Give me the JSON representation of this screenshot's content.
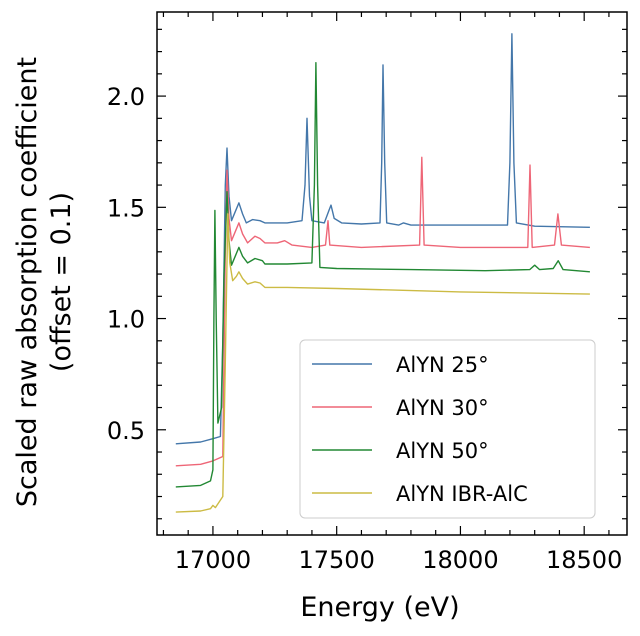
{
  "chart_data": {
    "type": "line",
    "title": "",
    "xlabel": "Energy (eV)",
    "ylabel": [
      "Scaled raw absorption coefficient",
      "(offset = 0.1)"
    ],
    "xlim": [
      16774,
      18673
    ],
    "ylim": [
      0.027,
      2.378
    ],
    "xticks": [
      17000,
      17500,
      18000,
      18500
    ],
    "xtick_labels": [
      "17000",
      "17500",
      "18000",
      "18500"
    ],
    "yticks": [
      0.5,
      1.0,
      1.5,
      2.0
    ],
    "ytick_labels": [
      "0.5",
      "1.0",
      "1.5",
      "2.0"
    ],
    "x_minor_step": 100,
    "y_minor_step": 0.1,
    "grid": false,
    "legend_position": "lower-right",
    "series": [
      {
        "name": "AlYN 25°",
        "color": "#4477AA",
        "points": [
          [
            16850,
            0.437
          ],
          [
            16950,
            0.445
          ],
          [
            17000,
            0.46
          ],
          [
            17030,
            0.47
          ],
          [
            17040,
            0.9
          ],
          [
            17050,
            1.6
          ],
          [
            17057,
            1.766
          ],
          [
            17065,
            1.55
          ],
          [
            17075,
            1.44
          ],
          [
            17090,
            1.48
          ],
          [
            17105,
            1.52
          ],
          [
            17120,
            1.47
          ],
          [
            17135,
            1.43
          ],
          [
            17160,
            1.445
          ],
          [
            17190,
            1.44
          ],
          [
            17210,
            1.43
          ],
          [
            17300,
            1.43
          ],
          [
            17360,
            1.44
          ],
          [
            17372,
            1.6
          ],
          [
            17380,
            1.9
          ],
          [
            17390,
            1.55
          ],
          [
            17400,
            1.44
          ],
          [
            17450,
            1.43
          ],
          [
            17470,
            1.49
          ],
          [
            17477,
            1.51
          ],
          [
            17490,
            1.45
          ],
          [
            17520,
            1.43
          ],
          [
            17600,
            1.425
          ],
          [
            17675,
            1.43
          ],
          [
            17682,
            1.7
          ],
          [
            17687,
            2.14
          ],
          [
            17694,
            1.7
          ],
          [
            17702,
            1.43
          ],
          [
            17750,
            1.42
          ],
          [
            17770,
            1.43
          ],
          [
            17800,
            1.42
          ],
          [
            18000,
            1.42
          ],
          [
            18190,
            1.42
          ],
          [
            18200,
            1.7
          ],
          [
            18208,
            2.28
          ],
          [
            18216,
            1.7
          ],
          [
            18226,
            1.43
          ],
          [
            18300,
            1.415
          ],
          [
            18523,
            1.41
          ]
        ]
      },
      {
        "name": "AlYN 30°",
        "color": "#EE6677",
        "points": [
          [
            16850,
            0.338
          ],
          [
            16950,
            0.345
          ],
          [
            17000,
            0.36
          ],
          [
            17040,
            0.38
          ],
          [
            17050,
            1.3
          ],
          [
            17057,
            1.667
          ],
          [
            17065,
            1.45
          ],
          [
            17075,
            1.35
          ],
          [
            17090,
            1.39
          ],
          [
            17105,
            1.43
          ],
          [
            17120,
            1.38
          ],
          [
            17140,
            1.34
          ],
          [
            17170,
            1.37
          ],
          [
            17190,
            1.36
          ],
          [
            17210,
            1.34
          ],
          [
            17260,
            1.34
          ],
          [
            17290,
            1.35
          ],
          [
            17320,
            1.33
          ],
          [
            17400,
            1.32
          ],
          [
            17455,
            1.33
          ],
          [
            17465,
            1.44
          ],
          [
            17472,
            1.33
          ],
          [
            17600,
            1.32
          ],
          [
            17835,
            1.33
          ],
          [
            17844,
            1.725
          ],
          [
            17853,
            1.33
          ],
          [
            18000,
            1.32
          ],
          [
            18272,
            1.32
          ],
          [
            18281,
            1.69
          ],
          [
            18290,
            1.32
          ],
          [
            18380,
            1.33
          ],
          [
            18394,
            1.47
          ],
          [
            18408,
            1.33
          ],
          [
            18523,
            1.32
          ]
        ]
      },
      {
        "name": "AlYN 50°",
        "color": "#228833",
        "points": [
          [
            16850,
            0.243
          ],
          [
            16950,
            0.25
          ],
          [
            16990,
            0.27
          ],
          [
            17000,
            0.32
          ],
          [
            17004,
            1.0
          ],
          [
            17008,
            1.486
          ],
          [
            17013,
            1.0
          ],
          [
            17020,
            0.53
          ],
          [
            17035,
            0.6
          ],
          [
            17045,
            1.2
          ],
          [
            17057,
            1.57
          ],
          [
            17065,
            1.35
          ],
          [
            17075,
            1.24
          ],
          [
            17090,
            1.28
          ],
          [
            17105,
            1.32
          ],
          [
            17120,
            1.28
          ],
          [
            17140,
            1.25
          ],
          [
            17170,
            1.27
          ],
          [
            17200,
            1.26
          ],
          [
            17210,
            1.245
          ],
          [
            17300,
            1.245
          ],
          [
            17400,
            1.25
          ],
          [
            17410,
            1.6
          ],
          [
            17416,
            2.15
          ],
          [
            17423,
            1.6
          ],
          [
            17432,
            1.23
          ],
          [
            17500,
            1.225
          ],
          [
            17800,
            1.22
          ],
          [
            18100,
            1.215
          ],
          [
            18280,
            1.22
          ],
          [
            18300,
            1.24
          ],
          [
            18320,
            1.22
          ],
          [
            18375,
            1.225
          ],
          [
            18395,
            1.26
          ],
          [
            18415,
            1.22
          ],
          [
            18523,
            1.21
          ]
        ]
      },
      {
        "name": "AlYN IBR-AlC",
        "color": "#CCBB44",
        "points": [
          [
            16850,
            0.13
          ],
          [
            16950,
            0.135
          ],
          [
            16990,
            0.145
          ],
          [
            17000,
            0.16
          ],
          [
            17010,
            0.15
          ],
          [
            17040,
            0.2
          ],
          [
            17050,
            0.8
          ],
          [
            17060,
            1.47
          ],
          [
            17068,
            1.25
          ],
          [
            17080,
            1.17
          ],
          [
            17095,
            1.19
          ],
          [
            17105,
            1.21
          ],
          [
            17120,
            1.18
          ],
          [
            17140,
            1.155
          ],
          [
            17170,
            1.165
          ],
          [
            17190,
            1.16
          ],
          [
            17210,
            1.14
          ],
          [
            17300,
            1.14
          ],
          [
            17500,
            1.135
          ],
          [
            18000,
            1.12
          ],
          [
            18523,
            1.11
          ]
        ]
      }
    ]
  }
}
